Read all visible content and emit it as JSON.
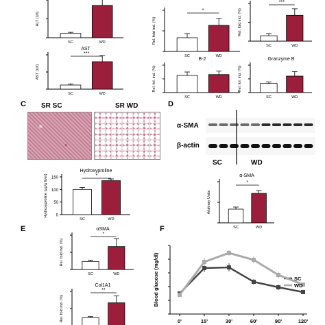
{
  "panel_letters": {
    "c": "C",
    "d": "D",
    "e": "E",
    "f": "F"
  },
  "micrographs": {
    "sc_label": "SR SC",
    "wd_label": "SR WD"
  },
  "western": {
    "sma_label": "α-SMA",
    "actin_label": "β-actin",
    "sc_label": "SC",
    "wd_label": "WD"
  },
  "chart_data": [
    {
      "id": "alt",
      "type": "bar",
      "categories": [
        "SC",
        "WD"
      ],
      "values": [
        40,
        300
      ],
      "errors": [
        10,
        55
      ],
      "ylabel": "ALT (U/l)",
      "title": "",
      "ylim": [
        0,
        350
      ]
    },
    {
      "id": "ast",
      "type": "bar",
      "categories": [
        "SC",
        "WD"
      ],
      "values": [
        30,
        200
      ],
      "errors": [
        8,
        45
      ],
      "ylabel": "AST (U/l)",
      "title": "AST",
      "ylim": [
        0,
        250
      ],
      "significance": "***"
    },
    {
      "id": "top_mid",
      "type": "bar",
      "categories": [
        "SC",
        "WD"
      ],
      "values": [
        1,
        1.9
      ],
      "errors": [
        0.3,
        0.5
      ],
      "ylabel": "Rel. fold ind. (%)",
      "title": "",
      "ylim": [
        0,
        3
      ],
      "significance": "*"
    },
    {
      "id": "top_right",
      "type": "bar",
      "categories": [
        "SC",
        "WD"
      ],
      "values": [
        1,
        4.8
      ],
      "errors": [
        0.4,
        1.2
      ],
      "ylabel": "Rel. fold ind. (%)",
      "title": "",
      "ylim": [
        0,
        7
      ],
      "significance": "***"
    },
    {
      "id": "b2",
      "type": "bar",
      "categories": [
        "SC",
        "WD"
      ],
      "values": [
        1,
        1.05
      ],
      "errors": [
        0.2,
        0.2
      ],
      "ylabel": "Rel. fol. ind. (%)",
      "title": "B-2",
      "ylim": [
        0,
        1.6
      ]
    },
    {
      "id": "granzyme_b",
      "type": "bar",
      "categories": [
        "SC",
        "WD"
      ],
      "values": [
        1,
        1.8
      ],
      "errors": [
        0.15,
        0.5
      ],
      "ylabel": "Rel. fol. ind. (%)",
      "title": "Granzyme B",
      "ylim": [
        0,
        3
      ]
    },
    {
      "id": "hydroxyproline",
      "type": "bar",
      "categories": [
        "SC",
        "WD"
      ],
      "values": [
        100,
        135
      ],
      "errors": [
        8,
        7
      ],
      "ylabel": "Hydroxyproline (µg/g liver)",
      "title": "Hydroxyproline",
      "ylim": [
        0,
        150
      ],
      "yticks": [
        0,
        50,
        100,
        150
      ],
      "significance": "*"
    },
    {
      "id": "sma",
      "type": "bar",
      "categories": [
        "SC",
        "WD"
      ],
      "values": [
        1,
        2.15
      ],
      "errors": [
        0.15,
        0.2
      ],
      "ylabel": "Arbitrary Units",
      "title": "α-SMA",
      "ylim": [
        0,
        3
      ],
      "significance": "*"
    },
    {
      "id": "e_sma",
      "type": "bar",
      "categories": [
        "SC",
        "WD"
      ],
      "values": [
        0.7,
        2
      ],
      "errors": [
        0.12,
        0.7
      ],
      "ylabel": "Rel. fold ind. (%)",
      "title": "αSMA",
      "ylim": [
        0,
        3
      ],
      "significance": "*"
    },
    {
      "id": "col1a1",
      "type": "bar",
      "categories": [
        "SC",
        "WD"
      ],
      "values": [
        0.7,
        2.0
      ],
      "errors": [
        0.1,
        0.6
      ],
      "ylabel": "Rel. fold ind. (%)",
      "title": "Col1A1",
      "ylim": [
        0,
        3
      ],
      "significance": "**"
    },
    {
      "id": "glucose",
      "type": "line",
      "x": [
        "0'",
        "15'",
        "30'",
        "60'",
        "90'",
        "120'"
      ],
      "series": [
        {
          "name": "SC",
          "values": [
            150,
            335,
            340,
            235,
            195,
            160
          ],
          "errors": [
            15,
            30,
            30,
            20,
            20,
            12
          ]
        },
        {
          "name": "WD",
          "values": [
            140,
            380,
            445,
            395,
            285,
            215
          ],
          "errors": [
            12,
            30,
            20,
            25,
            25,
            15
          ]
        }
      ],
      "ylabel": "Blood glucose (mg/dl)",
      "ylim": [
        0,
        500
      ],
      "yticks": [
        0,
        100,
        200,
        300,
        400,
        500
      ]
    }
  ]
}
